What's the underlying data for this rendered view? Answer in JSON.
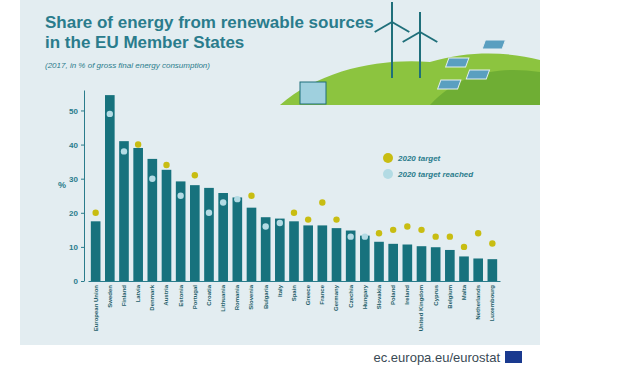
{
  "chart_data": {
    "type": "bar",
    "title": "Share of energy from renewable sources\nin the EU Member States",
    "subtitle": "(2017, in % of gross final energy consumption)",
    "y_label": "%",
    "source": "ec.europa.eu/eurostat",
    "categories": [
      "European Union",
      "Sweden",
      "Finland",
      "Latvia",
      "Denmark",
      "Austria",
      "Estonia",
      "Portugal",
      "Croatia",
      "Lithuania",
      "Romania",
      "Slovenia",
      "Bulgaria",
      "Italy",
      "Spain",
      "Greece",
      "France",
      "Germany",
      "Czechia",
      "Hungary",
      "Slovakia",
      "Poland",
      "Ireland",
      "United Kingdom",
      "Cyprus",
      "Belgium",
      "Malta",
      "Netherlands",
      "Luxembourg"
    ],
    "values": [
      17.5,
      54.5,
      41.0,
      39.0,
      35.8,
      32.6,
      29.2,
      28.1,
      27.3,
      25.8,
      24.5,
      21.5,
      18.7,
      18.3,
      17.5,
      16.3,
      16.3,
      15.5,
      14.8,
      13.3,
      11.5,
      10.9,
      10.7,
      10.2,
      9.9,
      9.1,
      7.2,
      6.6,
      6.4
    ],
    "color": "#17727d",
    "series": [
      {
        "name": "2020 target",
        "type": "scatter",
        "marker": "circle",
        "color": "#c8bd12",
        "values": [
          20,
          null,
          null,
          40,
          null,
          34,
          null,
          31,
          null,
          null,
          null,
          25,
          null,
          null,
          20,
          18,
          23,
          18,
          null,
          null,
          14,
          15,
          16,
          15,
          13,
          13,
          10,
          14,
          11
        ]
      },
      {
        "name": "2020 target reached",
        "type": "scatter",
        "marker": "circle",
        "color": "#b3dbe4",
        "values": [
          null,
          49,
          38,
          null,
          30,
          null,
          25,
          null,
          20,
          23,
          24,
          null,
          16,
          17,
          null,
          null,
          null,
          null,
          13,
          13,
          null,
          null,
          null,
          null,
          null,
          null,
          null,
          null,
          null
        ]
      }
    ],
    "ylim": [
      0,
      56
    ],
    "yticks": [
      0,
      10,
      20,
      30,
      40,
      50
    ],
    "legend": "upper right"
  }
}
